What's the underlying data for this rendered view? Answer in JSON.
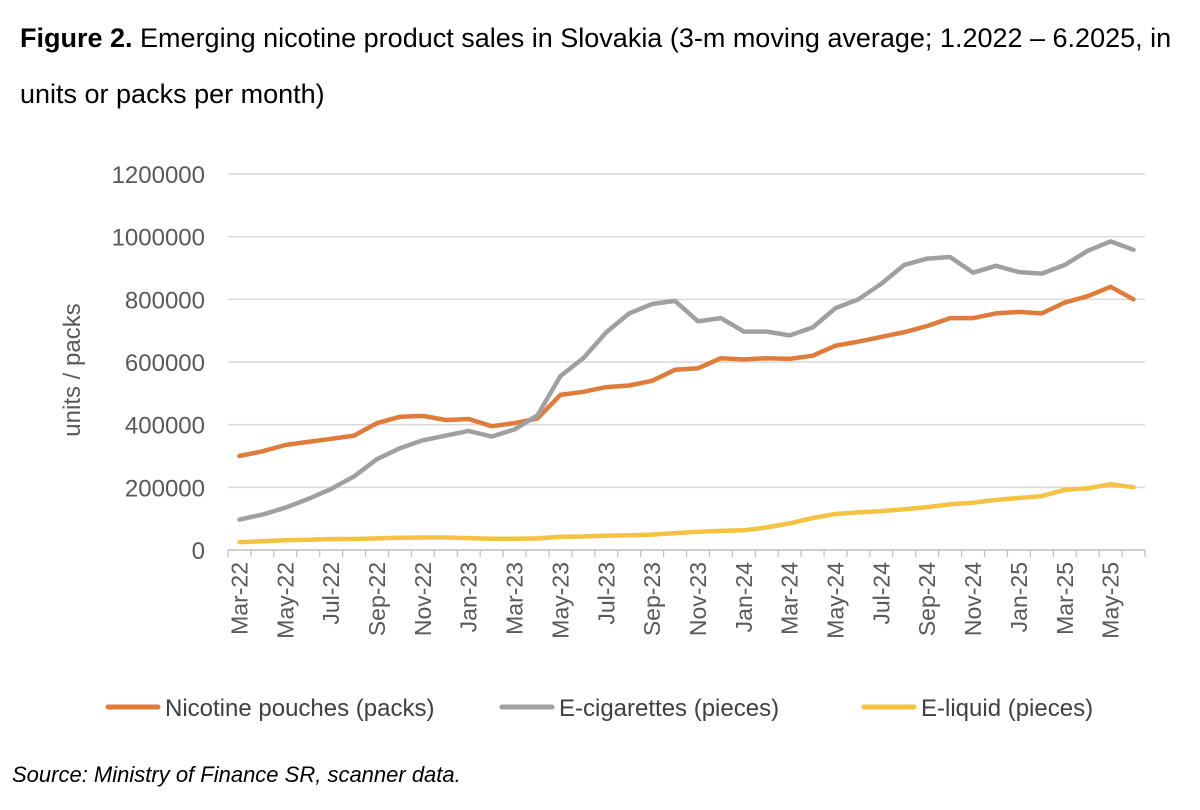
{
  "figure": {
    "label": "Figure 2.",
    "title": "Emerging nicotine product sales in Slovakia (3-m moving average; 1.2022 – 6.2025, in units or packs per month)",
    "source": "Source: Ministry of Finance SR, scanner data."
  },
  "chart_data": {
    "type": "line",
    "title": "Figure 2. Emerging nicotine product sales in Slovakia (3-m moving average; 1.2022 – 6.2025, in units or packs per month)",
    "xlabel": "",
    "ylabel": "units / packs",
    "ylim": [
      0,
      1200000
    ],
    "yticks": [
      0,
      200000,
      400000,
      600000,
      800000,
      1000000,
      1200000
    ],
    "grid": "horizontal",
    "legend_position": "bottom",
    "x": [
      "Mar-22",
      "Apr-22",
      "May-22",
      "Jun-22",
      "Jul-22",
      "Aug-22",
      "Sep-22",
      "Oct-22",
      "Nov-22",
      "Dec-22",
      "Jan-23",
      "Feb-23",
      "Mar-23",
      "Apr-23",
      "May-23",
      "Jun-23",
      "Jul-23",
      "Aug-23",
      "Sep-23",
      "Oct-23",
      "Nov-23",
      "Dec-23",
      "Jan-24",
      "Feb-24",
      "Mar-24",
      "Apr-24",
      "May-24",
      "Jun-24",
      "Jul-24",
      "Aug-24",
      "Sep-24",
      "Oct-24",
      "Nov-24",
      "Dec-24",
      "Jan-25",
      "Feb-25",
      "Mar-25",
      "Apr-25",
      "May-25",
      "Jun-25"
    ],
    "xtick_labels": [
      "Mar-22",
      "May-22",
      "Jul-22",
      "Sep-22",
      "Nov-22",
      "Jan-23",
      "Mar-23",
      "May-23",
      "Jul-23",
      "Sep-23",
      "Nov-23",
      "Jan-24",
      "Mar-24",
      "May-24",
      "Jul-24",
      "Sep-24",
      "Nov-24",
      "Jan-25",
      "Mar-25",
      "May-25"
    ],
    "series": [
      {
        "name": "Nicotine pouches (packs)",
        "color": "#E07B39",
        "values": [
          300000,
          315000,
          335000,
          345000,
          355000,
          365000,
          405000,
          425000,
          428000,
          415000,
          418000,
          395000,
          405000,
          420000,
          495000,
          505000,
          520000,
          525000,
          540000,
          575000,
          580000,
          612000,
          608000,
          612000,
          610000,
          620000,
          652000,
          665000,
          680000,
          695000,
          715000,
          740000,
          740000,
          755000,
          760000,
          755000,
          790000,
          810000,
          840000,
          800000
        ]
      },
      {
        "name": "E-cigarettes (pieces)",
        "color": "#A0A0A0",
        "values": [
          97000,
          113000,
          135000,
          163000,
          195000,
          235000,
          290000,
          325000,
          350000,
          365000,
          380000,
          362000,
          385000,
          430000,
          555000,
          612000,
          695000,
          755000,
          785000,
          795000,
          730000,
          740000,
          697000,
          697000,
          685000,
          710000,
          772000,
          800000,
          850000,
          910000,
          930000,
          935000,
          885000,
          907000,
          887000,
          882000,
          910000,
          955000,
          985000,
          958000
        ]
      },
      {
        "name": "E-liquid (pieces)",
        "color": "#F5C242",
        "values": [
          25000,
          28000,
          31000,
          33000,
          35000,
          35000,
          37000,
          39000,
          40000,
          40000,
          38000,
          36000,
          36000,
          37000,
          42000,
          43000,
          46000,
          47000,
          49000,
          54000,
          58000,
          61000,
          63000,
          72000,
          85000,
          102000,
          115000,
          120000,
          124000,
          130000,
          137000,
          146000,
          151000,
          160000,
          166000,
          172000,
          192000,
          197000,
          210000,
          200000
        ]
      }
    ]
  }
}
